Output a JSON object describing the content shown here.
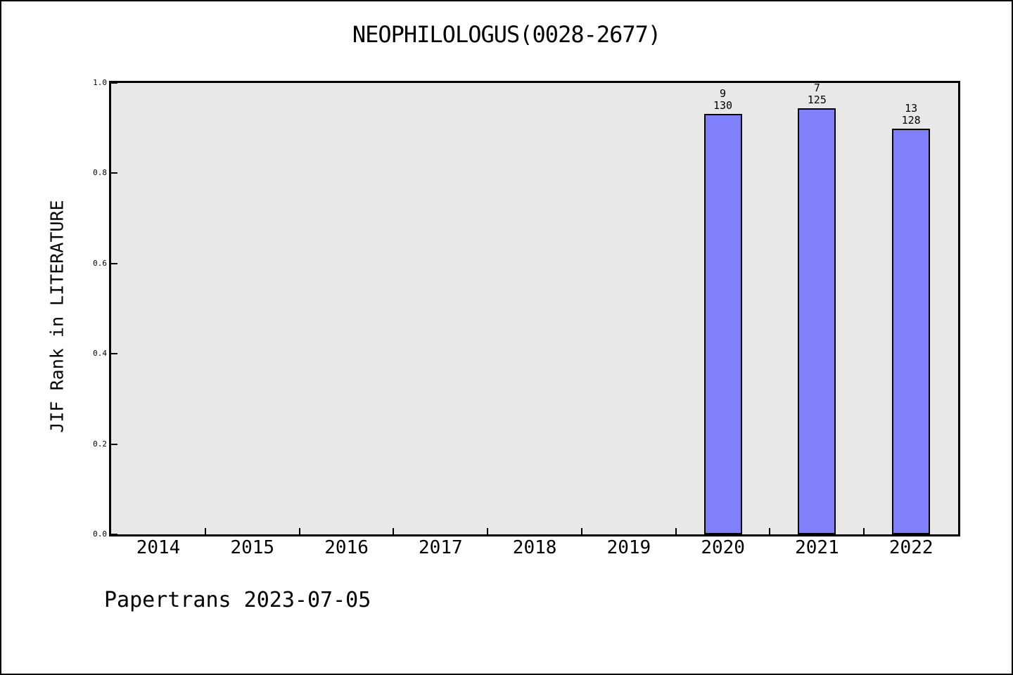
{
  "title": "NEOPHILOLOGUS(0028-2677)",
  "footer": "Papertrans 2023-07-05",
  "colors": {
    "bar_fill": "#8080fa",
    "bar_edge": "#000000",
    "plot_background": "#e8e8e8",
    "figure_background": "#ffffff",
    "frame_border": "#000000"
  },
  "chart_data": {
    "type": "bar",
    "title": "NEOPHILOLOGUS(0028-2677)",
    "ylabel": "JIF Rank in LITERATURE",
    "categories": [
      "2014",
      "2015",
      "2016",
      "2017",
      "2018",
      "2019",
      "2020",
      "2021",
      "2022"
    ],
    "yticks": [
      "0.0",
      "0.2",
      "0.4",
      "0.6",
      "0.8",
      "1.0"
    ],
    "ylim": [
      0.0,
      1.0
    ],
    "grid": false,
    "legend": "none",
    "bars": [
      {
        "category": "2020",
        "rank": 9,
        "total": 130,
        "value": 0.9308
      },
      {
        "category": "2021",
        "rank": 7,
        "total": 125,
        "value": 0.944
      },
      {
        "category": "2022",
        "rank": 13,
        "total": 128,
        "value": 0.8984
      }
    ]
  }
}
